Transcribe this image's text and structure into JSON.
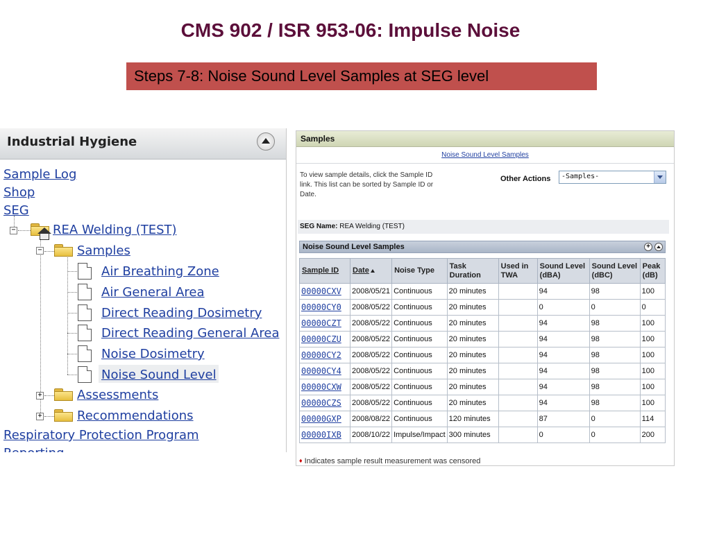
{
  "slide": {
    "title": "CMS 902 / ISR 953-06: Impulse Noise",
    "subtitle": "Steps 7-8: Noise Sound Level Samples at SEG level"
  },
  "left_panel": {
    "title": "Industrial Hygiene",
    "links": {
      "sample_log": "Sample Log",
      "shop": "Shop",
      "seg": "SEG",
      "respiratory": "Respiratory Protection Program",
      "reporting": "Reporting"
    },
    "tree": {
      "root": "REA Welding (TEST)",
      "samples": "Samples",
      "sample_types": [
        "Air Breathing Zone",
        "Air General Area",
        "Direct Reading Dosimetry",
        "Direct Reading General Area",
        "Noise Dosimetry",
        "Noise Sound Level"
      ],
      "assessments": "Assessments",
      "recommendations": "Recommendations"
    }
  },
  "samples_panel": {
    "header": "Samples",
    "top_link": "Noise Sound Level Samples",
    "instructions": "To view sample details, click the Sample ID link. This list can be sorted by Sample ID or Date.",
    "other_actions_label": "Other Actions",
    "other_actions_value": "-Samples-",
    "seg_label": "SEG Name:",
    "seg_value": "REA Welding (TEST)",
    "table_title": "Noise Sound Level Samples",
    "columns": {
      "sample_id": "Sample ID",
      "date": "Date",
      "noise_type": "Noise Type",
      "task_duration": "Task Duration",
      "used_in_twa": "Used in TWA",
      "dba": "Sound Level (dBA)",
      "dbc": "Sound Level (dBC)",
      "peak": "Peak (dB)"
    },
    "rows": [
      {
        "id": "00000CXV",
        "date": "2008/05/21",
        "type": "Continuous",
        "duration": "20 minutes",
        "twa": "",
        "dba": "94",
        "dbc": "98",
        "peak": "100"
      },
      {
        "id": "00000CY0",
        "date": "2008/05/22",
        "type": "Continuous",
        "duration": "20 minutes",
        "twa": "",
        "dba": "0",
        "dbc": "0",
        "peak": "0"
      },
      {
        "id": "00000CZT",
        "date": "2008/05/22",
        "type": "Continuous",
        "duration": "20 minutes",
        "twa": "",
        "dba": "94",
        "dbc": "98",
        "peak": "100"
      },
      {
        "id": "00000CZU",
        "date": "2008/05/22",
        "type": "Continuous",
        "duration": "20 minutes",
        "twa": "",
        "dba": "94",
        "dbc": "98",
        "peak": "100"
      },
      {
        "id": "00000CY2",
        "date": "2008/05/22",
        "type": "Continuous",
        "duration": "20 minutes",
        "twa": "",
        "dba": "94",
        "dbc": "98",
        "peak": "100"
      },
      {
        "id": "00000CY4",
        "date": "2008/05/22",
        "type": "Continuous",
        "duration": "20 minutes",
        "twa": "",
        "dba": "94",
        "dbc": "98",
        "peak": "100"
      },
      {
        "id": "00000CXW",
        "date": "2008/05/22",
        "type": "Continuous",
        "duration": "20 minutes",
        "twa": "",
        "dba": "94",
        "dbc": "98",
        "peak": "100"
      },
      {
        "id": "00000CZS",
        "date": "2008/05/22",
        "type": "Continuous",
        "duration": "20 minutes",
        "twa": "",
        "dba": "94",
        "dbc": "98",
        "peak": "100"
      },
      {
        "id": "00000GXP",
        "date": "2008/08/22",
        "type": "Continuous",
        "duration": "120 minutes",
        "twa": "",
        "dba": "87",
        "dbc": "0",
        "peak": "114"
      },
      {
        "id": "00000IXB",
        "date": "2008/10/22",
        "type": "Impulse/Impact",
        "duration": "300 minutes",
        "twa": "",
        "dba": "0",
        "dbc": "0",
        "peak": "200"
      }
    ],
    "footnote": "Indicates sample result measurement was censored"
  },
  "colors": {
    "title": "#5c0f3a",
    "subtitle_bg": "#c0504d",
    "link": "#1f3fa0"
  }
}
